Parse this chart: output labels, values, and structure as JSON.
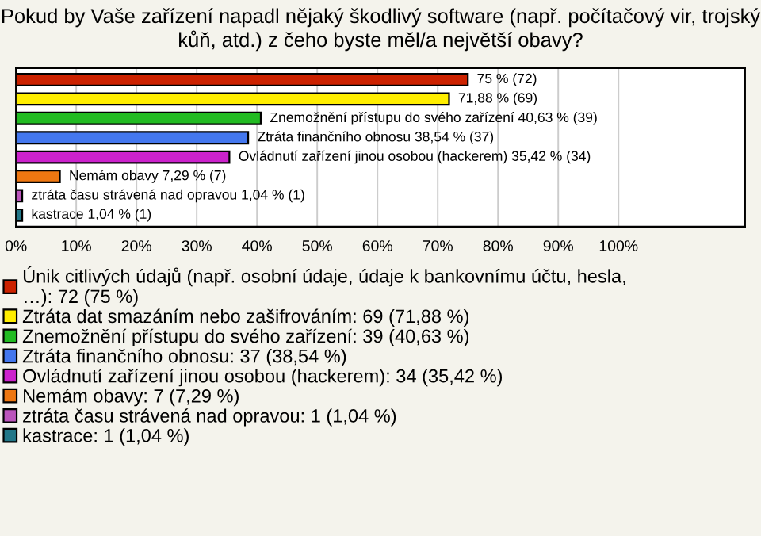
{
  "chart_data": {
    "type": "bar",
    "orientation": "horizontal",
    "title": "Pokud by Vaše zařízení napadl nějaký škodlivý software (např. počítačový vir, trojský kůň, atd.) z čeho byste měl/a největší obavy?",
    "categories": [
      null,
      null,
      null,
      null,
      null,
      null,
      null,
      null
    ],
    "series": [
      {
        "name": "Únik citlivých údajů (např. osobní údaje, údaje k bankovnímu účtu, hesla,\n…): 72 (75 %)",
        "color": "#cc2200",
        "values": [
          75,
          null,
          null,
          null,
          null,
          null,
          null,
          null
        ],
        "value_labels": [
          "75 % (72)",
          null,
          null,
          null,
          null,
          null,
          null,
          null
        ]
      },
      {
        "name": "Ztráta dat smazáním nebo zašifrováním: 69 (71,88 %)",
        "color": "#ffee00",
        "values": [
          null,
          71.88,
          null,
          null,
          null,
          null,
          null,
          null
        ],
        "value_labels": [
          null,
          "71,88 % (69)",
          null,
          null,
          null,
          null,
          null,
          null
        ]
      },
      {
        "name": "Znemožnění přístupu do svého zařízení: 39 (40,63 %)",
        "color": "#22bb22",
        "values": [
          null,
          null,
          40.63,
          null,
          null,
          null,
          null,
          null
        ],
        "value_labels": [
          null,
          null,
          "Znemožnění přístupu do svého zařízení 40,63 % (39)",
          null,
          null,
          null,
          null,
          null
        ]
      },
      {
        "name": "Ztráta finančního obnosu: 37 (38,54 %)",
        "color": "#4477ee",
        "values": [
          null,
          null,
          null,
          38.54,
          null,
          null,
          null,
          null
        ],
        "value_labels": [
          null,
          null,
          null,
          "Ztráta finančního obnosu 38,54 % (37)",
          null,
          null,
          null,
          null
        ]
      },
      {
        "name": "Ovládnutí zařízení jinou osobou (hackerem): 34 (35,42 %)",
        "color": "#cc22cc",
        "values": [
          null,
          null,
          null,
          null,
          35.42,
          null,
          null,
          null
        ],
        "value_labels": [
          null,
          null,
          null,
          null,
          "Ovládnutí zařízení jinou osobou (hackerem) 35,42 % (34)",
          null,
          null,
          null
        ]
      },
      {
        "name": "Nemám obavy: 7 (7,29 %)",
        "color": "#ee7711",
        "values": [
          null,
          null,
          null,
          null,
          null,
          7.29,
          null,
          null
        ],
        "value_labels": [
          null,
          null,
          null,
          null,
          null,
          "Nemám obavy 7,29 % (7)",
          null,
          null
        ]
      },
      {
        "name": "ztráta času strávená nad opravou: 1 (1,04 %)",
        "color": "#bb55bb",
        "values": [
          null,
          null,
          null,
          null,
          null,
          null,
          1.04,
          null
        ],
        "value_labels": [
          null,
          null,
          null,
          null,
          null,
          null,
          "ztráta času strávená nad opravou 1,04 % (1)",
          null
        ]
      },
      {
        "name": "kastrace: 1 (1,04 %)",
        "color": "#227788",
        "values": [
          null,
          null,
          null,
          null,
          null,
          null,
          null,
          1.04
        ],
        "value_labels": [
          null,
          null,
          null,
          null,
          null,
          null,
          null,
          "kastrace 1,04 % (1)"
        ]
      }
    ],
    "xlim": [
      0,
      121
    ],
    "xticks": [
      {
        "value": 0,
        "label": "0%"
      },
      {
        "value": 10,
        "label": "10%"
      },
      {
        "value": 20,
        "label": "20%"
      },
      {
        "value": 30,
        "label": "30%"
      },
      {
        "value": 40,
        "label": "40%"
      },
      {
        "value": 50,
        "label": "50%"
      },
      {
        "value": 60,
        "label": "60%"
      },
      {
        "value": 70,
        "label": "70%"
      },
      {
        "value": 80,
        "label": "80%"
      },
      {
        "value": 90,
        "label": "90%"
      },
      {
        "value": 100,
        "label": "100%"
      }
    ],
    "grid": "x",
    "tick_labels": "x",
    "legend": "bottom"
  }
}
